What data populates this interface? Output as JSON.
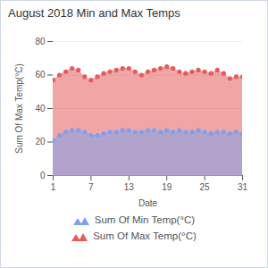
{
  "chart_data": {
    "type": "area",
    "title": "August 2018 Min and Max Temps",
    "x_label": "Date",
    "y_label": "Sum Of Max Temp(°C)",
    "x": [
      1,
      2,
      3,
      4,
      5,
      6,
      7,
      8,
      9,
      10,
      11,
      12,
      13,
      14,
      15,
      16,
      17,
      18,
      19,
      20,
      21,
      22,
      23,
      24,
      25,
      26,
      27,
      28,
      29,
      30,
      31
    ],
    "series": [
      {
        "name": "Sum Of Max Temp(°C)",
        "color": "#e35d5a",
        "marker": "circle",
        "values": [
          57,
          60,
          62,
          64,
          63,
          59,
          57,
          59,
          61,
          62,
          63,
          64,
          64,
          62,
          60,
          62,
          63,
          64,
          65,
          64,
          62,
          61,
          62,
          63,
          62,
          61,
          63,
          61,
          58,
          59,
          59
        ]
      },
      {
        "name": "Sum Of Min Temp(°C)",
        "color": "#7fa0ef",
        "marker": "circle",
        "values": [
          21,
          24,
          26,
          27,
          27,
          26,
          24,
          24,
          25,
          26,
          26,
          27,
          27,
          26,
          26,
          27,
          27,
          26,
          27,
          26,
          27,
          26,
          26,
          27,
          26,
          25,
          26,
          26,
          25,
          26,
          25
        ]
      }
    ],
    "legend_order": [
      "Sum Of Min Temp(°C)",
      "Sum Of Max Temp(°C)"
    ],
    "xlim": [
      1,
      31
    ],
    "xticks": [
      1,
      7,
      13,
      19,
      25,
      31
    ],
    "ylim": [
      0,
      80
    ],
    "yticks": [
      0,
      20,
      40,
      60,
      80
    ],
    "grid": true,
    "legend": "bottom"
  }
}
